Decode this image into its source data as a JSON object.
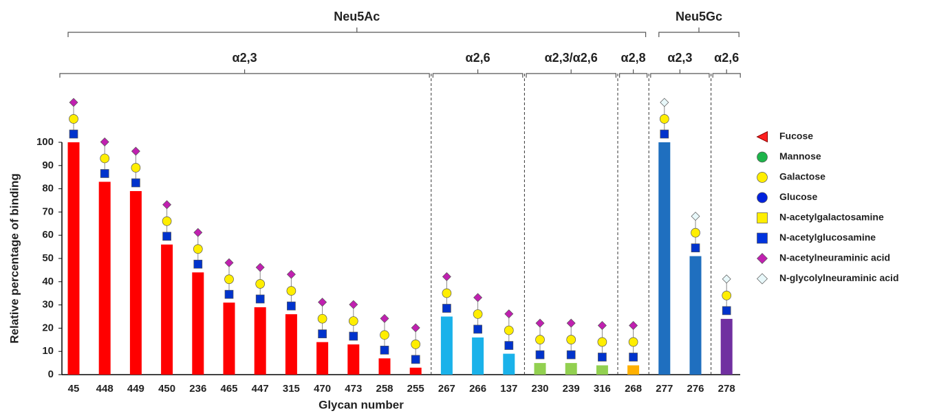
{
  "chart_data": {
    "type": "bar",
    "x_label": "Glycan number",
    "y_label": "Relative percentage of binding",
    "ylim": [
      0,
      100
    ],
    "yticks": [
      0,
      10,
      20,
      30,
      40,
      50,
      60,
      70,
      80,
      90,
      100
    ],
    "groups": [
      {
        "label": "Neu5Ac",
        "subgroups": [
          {
            "label": "α2,3",
            "color": "#ff0000",
            "categories": [
              "45",
              "448",
              "449",
              "450",
              "236",
              "465",
              "447",
              "315",
              "470",
              "473",
              "258",
              "255"
            ],
            "values": [
              100,
              83,
              79,
              56,
              44,
              31,
              29,
              26,
              14,
              13,
              7,
              3
            ]
          },
          {
            "label": "α2,6",
            "color": "#1ab2ea",
            "categories": [
              "267",
              "266",
              "137"
            ],
            "values": [
              25,
              16,
              9
            ]
          },
          {
            "label": "α2,3/α2,6",
            "color": "#92d050",
            "categories": [
              "230",
              "239",
              "316"
            ],
            "values": [
              5,
              5,
              4
            ]
          },
          {
            "label": "α2,8",
            "color": "#ffb000",
            "categories": [
              "268"
            ],
            "values": [
              4
            ]
          }
        ]
      },
      {
        "label": "Neu5Gc",
        "subgroups": [
          {
            "label": "α2,3",
            "color": "#1f6fbf",
            "categories": [
              "277",
              "276"
            ],
            "values": [
              100,
              51
            ]
          },
          {
            "label": "α2,6",
            "color": "#7030a0",
            "categories": [
              "278"
            ],
            "values": [
              24
            ]
          }
        ]
      }
    ],
    "legend": [
      "Fucose",
      "Mannose",
      "Galactose",
      "Glucose",
      "N-acetylgalactosamine",
      "N-acetylglucosamine",
      "N-acetylneuraminic acid",
      "N-glycolylneuraminic acid"
    ]
  }
}
